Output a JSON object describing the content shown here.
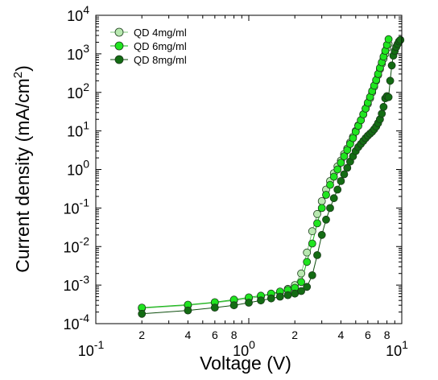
{
  "chart_data": {
    "type": "line",
    "xlabel": "Voltage (V)",
    "ylabel": "Current density (mA/cm",
    "ylabel_sup": "2",
    "ylabel_close": ")",
    "x_scale": "log",
    "y_scale": "log",
    "xlim": [
      0.1,
      10
    ],
    "ylim": [
      0.0001,
      10000
    ],
    "grid": false,
    "legend_position": "top-left",
    "major_x_ticks": [
      {
        "value": 0.1,
        "base": "10",
        "exp": "-1"
      },
      {
        "value": 1,
        "base": "10",
        "exp": "0"
      },
      {
        "value": 10,
        "base": "10",
        "exp": "1"
      }
    ],
    "minor_x_ticks": [
      {
        "value": 0.2,
        "label": "2"
      },
      {
        "value": 0.4,
        "label": "4"
      },
      {
        "value": 0.6,
        "label": "6"
      },
      {
        "value": 0.8,
        "label": "8"
      },
      {
        "value": 2,
        "label": "2"
      },
      {
        "value": 4,
        "label": "4"
      },
      {
        "value": 6,
        "label": "6"
      },
      {
        "value": 8,
        "label": "8"
      }
    ],
    "y_ticks": [
      {
        "value": 0.0001,
        "base": "10",
        "exp": "-4"
      },
      {
        "value": 0.001,
        "base": "10",
        "exp": "-3"
      },
      {
        "value": 0.01,
        "base": "10",
        "exp": "-2"
      },
      {
        "value": 0.1,
        "base": "10",
        "exp": "-1"
      },
      {
        "value": 1,
        "base": "10",
        "exp": "0"
      },
      {
        "value": 10,
        "base": "10",
        "exp": "1"
      },
      {
        "value": 100,
        "base": "10",
        "exp": "2"
      },
      {
        "value": 1000,
        "base": "10",
        "exp": "3"
      },
      {
        "value": 10000,
        "base": "10",
        "exp": "4"
      }
    ],
    "series": [
      {
        "name": "QD 4mg/ml",
        "color": "#b8e8b0",
        "line_color": "#7cc87a",
        "x": [
          0.2,
          0.4,
          0.6,
          0.8,
          1.0,
          1.2,
          1.4,
          1.6,
          1.8,
          2.0,
          2.2,
          2.4,
          2.6,
          2.8,
          3.0,
          3.2,
          3.4,
          3.6,
          3.8,
          4.0,
          4.2,
          4.4,
          4.6,
          4.8,
          5.0,
          5.2,
          5.4,
          5.6,
          5.8,
          6.0,
          6.2,
          6.4,
          6.6,
          6.8,
          7.0,
          7.2,
          7.4,
          7.6,
          7.8,
          8.0,
          8.2
        ],
        "y": [
          0.00025,
          0.0003,
          0.00035,
          0.0004,
          0.00045,
          0.0005,
          0.00058,
          0.00065,
          0.0008,
          0.001,
          0.002,
          0.007,
          0.025,
          0.07,
          0.15,
          0.3,
          0.5,
          0.8,
          1.2,
          1.7,
          2.5,
          3.5,
          5,
          7,
          10,
          14,
          19,
          27,
          38,
          50,
          70,
          100,
          140,
          200,
          280,
          400,
          550,
          750,
          1000,
          1400,
          1800
        ]
      },
      {
        "name": "QD 6mg/ml",
        "color": "#1fe51f",
        "line_color": "#14b814",
        "x": [
          0.2,
          0.4,
          0.6,
          0.8,
          1.0,
          1.2,
          1.4,
          1.6,
          1.8,
          2.0,
          2.2,
          2.4,
          2.6,
          2.8,
          3.0,
          3.2,
          3.4,
          3.6,
          3.8,
          4.0,
          4.2,
          4.4,
          4.6,
          4.8,
          5.0,
          5.2,
          5.4,
          5.6,
          5.8,
          6.0,
          6.2,
          6.4,
          6.6,
          6.8,
          7.0,
          7.2,
          7.4,
          7.6,
          7.8,
          8.0,
          8.2
        ],
        "y": [
          0.00026,
          0.00031,
          0.00036,
          0.00042,
          0.00048,
          0.00053,
          0.0006,
          0.00068,
          0.00075,
          0.00085,
          0.0012,
          0.004,
          0.012,
          0.04,
          0.1,
          0.22,
          0.4,
          0.65,
          1.0,
          1.5,
          2.2,
          3.2,
          4.6,
          6.5,
          9.5,
          13.5,
          19,
          27,
          38,
          54,
          76,
          108,
          150,
          210,
          300,
          430,
          600,
          850,
          1200,
          1700,
          2400
        ]
      },
      {
        "name": "QD 8mg/ml",
        "color": "#136c13",
        "line_color": "#0e4e0e",
        "x": [
          0.2,
          0.4,
          0.6,
          0.8,
          1.0,
          1.2,
          1.4,
          1.6,
          1.8,
          2.0,
          2.2,
          2.4,
          2.6,
          2.8,
          3.0,
          3.2,
          3.4,
          3.6,
          3.8,
          4.0,
          4.2,
          4.4,
          4.6,
          4.8,
          5.0,
          5.2,
          5.4,
          5.6,
          5.8,
          6.0,
          6.2,
          6.4,
          6.6,
          6.8,
          7.0,
          7.2,
          7.4,
          7.6,
          7.8,
          8.0,
          8.2,
          8.4,
          8.6,
          8.8,
          9.0,
          9.2,
          9.4,
          9.6,
          9.8
        ],
        "y": [
          0.00018,
          0.00022,
          0.00026,
          0.0003,
          0.00035,
          0.0004,
          0.00045,
          0.0005,
          0.00055,
          0.0006,
          0.0007,
          0.0009,
          0.0018,
          0.006,
          0.02,
          0.05,
          0.1,
          0.18,
          0.3,
          0.5,
          0.75,
          1.1,
          1.6,
          2.2,
          3.0,
          3.8,
          4.6,
          5.5,
          6.5,
          7.5,
          8.5,
          9.5,
          11,
          13,
          16,
          20,
          28,
          42,
          70,
          80,
          75,
          200,
          500,
          900,
          1200,
          1500,
          1800,
          2100,
          2300
        ]
      }
    ]
  }
}
